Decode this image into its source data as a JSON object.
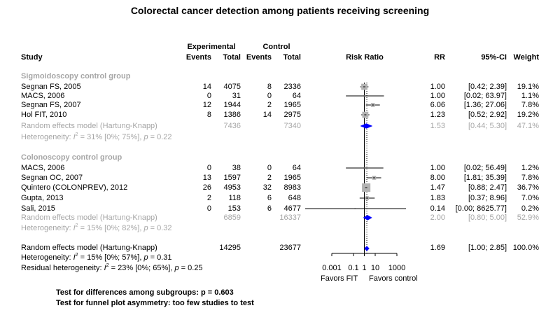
{
  "title": "Colorectal cancer detection among patients receiving screening",
  "header": {
    "study": "Study",
    "experimental": "Experimental",
    "control": "Control",
    "events": "Events",
    "total": "Total",
    "risk_ratio": "Risk Ratio",
    "rr": "RR",
    "ci": "95%-CI",
    "weight": "Weight"
  },
  "groups": [
    {
      "label": "Sigmoidoscopy control group",
      "studies": [
        {
          "name": "Segnan FS, 2005",
          "e_ev": "14",
          "e_tot": "4075",
          "c_ev": "8",
          "c_tot": "2336",
          "rr": "1.00",
          "ci": "[0.42;  2.39]",
          "w": "19.1%"
        },
        {
          "name": "MACS, 2006",
          "e_ev": "0",
          "e_tot": "31",
          "c_ev": "0",
          "c_tot": "64",
          "rr": "1.00",
          "ci": "[0.02; 63.97]",
          "w": "1.1%"
        },
        {
          "name": "Segnan FS, 2007",
          "e_ev": "12",
          "e_tot": "1944",
          "c_ev": "2",
          "c_tot": "1965",
          "rr": "6.06",
          "ci": "[1.36; 27.06]",
          "w": "7.8%"
        },
        {
          "name": "Hol FIT, 2010",
          "e_ev": "8",
          "e_tot": "1386",
          "c_ev": "14",
          "c_tot": "2975",
          "rr": "1.23",
          "ci": "[0.52;  2.92]",
          "w": "19.2%"
        }
      ],
      "pooled": {
        "name": "Random effects model (Hartung-Knapp)",
        "e_tot": "7436",
        "c_tot": "7340",
        "rr": "1.53",
        "ci": "[0.44;  5.30]",
        "w": "47.1%"
      },
      "het": {
        "prefix": "Heterogeneity: ",
        "i2": "I",
        "sq": "2",
        "mid": " = 31% [0%; 75%], ",
        "p": "p",
        "tail": " = 0.22"
      }
    },
    {
      "label": "Colonoscopy control group",
      "studies": [
        {
          "name": "MACS, 2006",
          "e_ev": "0",
          "e_tot": "38",
          "c_ev": "0",
          "c_tot": "64",
          "rr": "1.00",
          "ci": "[0.02; 56.49]",
          "w": "1.2%"
        },
        {
          "name": "Segnan OC, 2007",
          "e_ev": "13",
          "e_tot": "1597",
          "c_ev": "2",
          "c_tot": "1965",
          "rr": "8.00",
          "ci": "[1.81; 35.39]",
          "w": "7.8%"
        },
        {
          "name": "Quintero (COLONPREV), 2012",
          "e_ev": "26",
          "e_tot": "4953",
          "c_ev": "32",
          "c_tot": "8983",
          "rr": "1.47",
          "ci": "[0.88;  2.47]",
          "w": "36.7%"
        },
        {
          "name": "Gupta, 2013",
          "e_ev": "2",
          "e_tot": "118",
          "c_ev": "6",
          "c_tot": "648",
          "rr": "1.83",
          "ci": "[0.37;  8.96]",
          "w": "7.0%"
        },
        {
          "name": "Sali, 2015",
          "e_ev": "0",
          "e_tot": "153",
          "c_ev": "6",
          "c_tot": "4677",
          "rr": "0.14",
          "ci": "[0.00; 8625.77]",
          "w": "0.2%"
        }
      ],
      "pooled": {
        "name": "Random effects model (Hartung-Knapp)",
        "e_tot": "6859",
        "c_tot": "16337",
        "rr": "2.00",
        "ci": "[0.80;  5.00]",
        "w": "52.9%"
      },
      "het": {
        "prefix": "Heterogeneity: ",
        "i2": "I",
        "sq": "2",
        "mid": " = 15% [0%; 82%], ",
        "p": "p",
        "tail": " = 0.32"
      }
    }
  ],
  "overall": {
    "name": "Random effects model (Hartung-Knapp)",
    "e_tot": "14295",
    "c_tot": "23677",
    "rr": "1.69",
    "ci": "[1.00;  2.85]",
    "w": "100.0%",
    "het": {
      "prefix": "Heterogeneity: ",
      "i2": "I",
      "sq": "2",
      "mid": " = 15% [0%; 57%], ",
      "p": "p",
      "tail": " = 0.31"
    },
    "resid": {
      "prefix": "Residual heterogeneity: ",
      "i2": "I",
      "sq": "2",
      "mid": " = 23% [0%; 65%], ",
      "p": "p",
      "tail": " = 0.25"
    }
  },
  "axis": {
    "ticks": [
      "0.001",
      "0.1",
      "1",
      "10",
      "1000"
    ],
    "tick_values": [
      0.001,
      0.1,
      1,
      10,
      1000
    ],
    "left_label": "Favors FIT",
    "right_label": "Favors control"
  },
  "footer": {
    "subgroups": "Test for differences among subgroups: p = 0.603",
    "funnel": "Test for funnel plot asymmetry: too few studies to test"
  },
  "colors": {
    "square": "#b3b3b3",
    "diamond": "#0000ff",
    "grey_text": "#a6a6a6"
  },
  "chart_data": {
    "type": "forest",
    "scale": "log",
    "xlim": [
      0.001,
      1000
    ],
    "reference_line": 1,
    "pooled_line": 1.69,
    "rows": [
      {
        "study": "Segnan FS, 2005",
        "group": "Sigmoidoscopy control group",
        "rr": 1.0,
        "lower": 0.42,
        "upper": 2.39,
        "weight": 19.1
      },
      {
        "study": "MACS, 2006",
        "group": "Sigmoidoscopy control group",
        "rr": 1.0,
        "lower": 0.02,
        "upper": 63.97,
        "weight": 1.1
      },
      {
        "study": "Segnan FS, 2007",
        "group": "Sigmoidoscopy control group",
        "rr": 6.06,
        "lower": 1.36,
        "upper": 27.06,
        "weight": 7.8
      },
      {
        "study": "Hol FIT, 2010",
        "group": "Sigmoidoscopy control group",
        "rr": 1.23,
        "lower": 0.52,
        "upper": 2.92,
        "weight": 19.2
      },
      {
        "study": "MACS, 2006",
        "group": "Colonoscopy control group",
        "rr": 1.0,
        "lower": 0.02,
        "upper": 56.49,
        "weight": 1.2
      },
      {
        "study": "Segnan OC, 2007",
        "group": "Colonoscopy control group",
        "rr": 8.0,
        "lower": 1.81,
        "upper": 35.39,
        "weight": 7.8
      },
      {
        "study": "Quintero (COLONPREV), 2012",
        "group": "Colonoscopy control group",
        "rr": 1.47,
        "lower": 0.88,
        "upper": 2.47,
        "weight": 36.7
      },
      {
        "study": "Gupta, 2013",
        "group": "Colonoscopy control group",
        "rr": 1.83,
        "lower": 0.37,
        "upper": 8.96,
        "weight": 7.0
      },
      {
        "study": "Sali, 2015",
        "group": "Colonoscopy control group",
        "rr": 0.14,
        "lower": 0.0,
        "upper": 8625.77,
        "weight": 0.2
      }
    ],
    "pooled": [
      {
        "name": "Sigmoidoscopy control group",
        "rr": 1.53,
        "lower": 0.44,
        "upper": 5.3,
        "weight": 47.1
      },
      {
        "name": "Colonoscopy control group",
        "rr": 2.0,
        "lower": 0.8,
        "upper": 5.0,
        "weight": 52.9
      },
      {
        "name": "Overall",
        "rr": 1.69,
        "lower": 1.0,
        "upper": 2.85,
        "weight": 100.0
      }
    ]
  }
}
